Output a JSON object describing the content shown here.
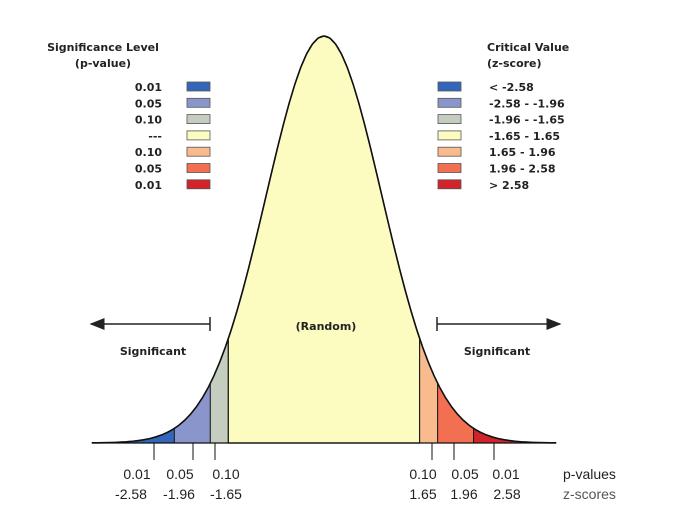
{
  "left_legend": {
    "title_line1": "Significance Level",
    "title_line2": "(p-value)",
    "rows": [
      {
        "label": "0.01",
        "color": "#3366bb"
      },
      {
        "label": "0.05",
        "color": "#8a95cc"
      },
      {
        "label": "0.10",
        "color": "#c5cdc0"
      },
      {
        "label": "---",
        "color": "#fcfcc0"
      },
      {
        "label": "0.10",
        "color": "#f9bb8e"
      },
      {
        "label": "0.05",
        "color": "#f26f52"
      },
      {
        "label": "0.01",
        "color": "#d2232a"
      }
    ]
  },
  "right_legend": {
    "title_line1": "Critical Value",
    "title_line2": "(z-score)",
    "rows": [
      {
        "label": "< -2.58",
        "color": "#3366bb"
      },
      {
        "label": "-2.58 - -1.96",
        "color": "#8a95cc"
      },
      {
        "label": "-1.96 - -1.65",
        "color": "#c5cdc0"
      },
      {
        "label": "-1.65 - 1.65",
        "color": "#fcfcc0"
      },
      {
        "label": "1.65 - 1.96",
        "color": "#f9bb8e"
      },
      {
        "label": "1.96 - 2.58",
        "color": "#f26f52"
      },
      {
        "label": "> 2.58",
        "color": "#d2232a"
      }
    ]
  },
  "labels": {
    "random": "(Random)",
    "significant_left": "Significant",
    "significant_right": "Significant",
    "p_values_caption": "p-values",
    "z_scores_caption": "z-scores"
  },
  "axis": {
    "p_values_left": [
      "0.01",
      "0.05",
      "0.10"
    ],
    "z_scores_left": [
      "-2.58",
      "-1.96",
      "-1.65"
    ],
    "p_values_right": [
      "0.10",
      "0.05",
      "0.01"
    ],
    "z_scores_right": [
      "1.65",
      "1.96",
      "2.58"
    ]
  },
  "curve": {
    "z_range": [
      -4,
      4
    ],
    "region_colors": {
      "tail_01": "#3366bb",
      "tail_05": "#8a95cc",
      "tail_10": "#c5cdc0",
      "random": "#fcfcc0",
      "right_10": "#f9bb8e",
      "right_05": "#f26f52",
      "right_01": "#d2232a"
    }
  }
}
